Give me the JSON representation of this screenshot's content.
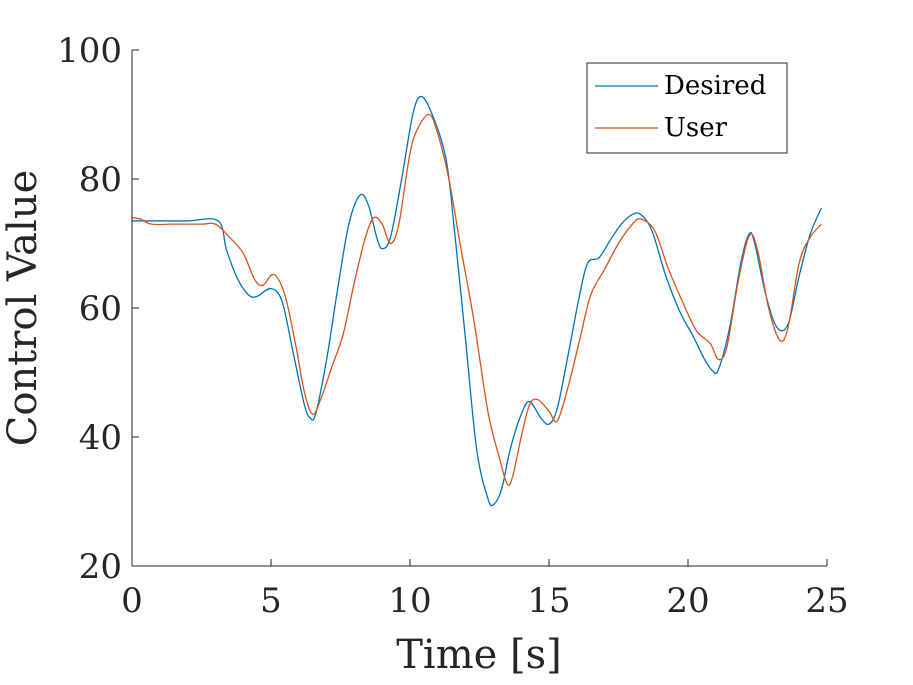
{
  "chart_data": {
    "type": "line",
    "xlabel": "Time [s]",
    "ylabel": "Control Value",
    "xlim": [
      0,
      25
    ],
    "ylim": [
      20,
      100
    ],
    "xticks": [
      0,
      5,
      10,
      15,
      20,
      25
    ],
    "yticks": [
      20,
      40,
      60,
      80,
      100
    ],
    "grid": false,
    "legend_position": "top-right",
    "series": [
      {
        "name": "Desired",
        "color": "#0072BD",
        "points": [
          [
            0,
            73.5
          ],
          [
            1,
            73.5
          ],
          [
            2,
            73.5
          ],
          [
            3.1,
            73.5
          ],
          [
            3.4,
            69
          ],
          [
            3.8,
            64.5
          ],
          [
            4.2,
            62
          ],
          [
            4.5,
            61.8
          ],
          [
            5.0,
            63
          ],
          [
            5.4,
            61
          ],
          [
            5.8,
            53
          ],
          [
            6.2,
            45
          ],
          [
            6.4,
            43
          ],
          [
            6.6,
            43.5
          ],
          [
            7.0,
            52
          ],
          [
            7.4,
            63
          ],
          [
            7.8,
            73
          ],
          [
            8.2,
            77.5
          ],
          [
            8.5,
            76
          ],
          [
            8.8,
            71
          ],
          [
            9.0,
            69.2
          ],
          [
            9.3,
            71
          ],
          [
            9.7,
            80
          ],
          [
            10.1,
            90
          ],
          [
            10.4,
            92.8
          ],
          [
            10.8,
            90
          ],
          [
            11.3,
            83
          ],
          [
            11.6,
            72
          ],
          [
            12.0,
            55
          ],
          [
            12.4,
            38
          ],
          [
            12.8,
            30.5
          ],
          [
            13.0,
            29.5
          ],
          [
            13.3,
            32
          ],
          [
            13.6,
            38
          ],
          [
            14.0,
            43.5
          ],
          [
            14.3,
            45.5
          ],
          [
            14.7,
            43
          ],
          [
            15.0,
            42
          ],
          [
            15.3,
            44.5
          ],
          [
            15.7,
            53
          ],
          [
            16.1,
            62
          ],
          [
            16.4,
            67
          ],
          [
            16.8,
            67.8
          ],
          [
            17.2,
            70.5
          ],
          [
            17.6,
            73
          ],
          [
            18.0,
            74.5
          ],
          [
            18.3,
            74.5
          ],
          [
            18.7,
            72
          ],
          [
            19.2,
            65
          ],
          [
            19.7,
            59.5
          ],
          [
            20.2,
            55.5
          ],
          [
            20.6,
            52
          ],
          [
            20.9,
            50.2
          ],
          [
            21.1,
            50.5
          ],
          [
            21.5,
            57
          ],
          [
            21.9,
            67
          ],
          [
            22.2,
            71.5
          ],
          [
            22.4,
            70
          ],
          [
            22.8,
            62
          ],
          [
            23.2,
            57
          ],
          [
            23.6,
            57.5
          ],
          [
            24.0,
            65
          ],
          [
            24.4,
            71.5
          ],
          [
            24.8,
            75.5
          ]
        ]
      },
      {
        "name": "User",
        "color": "#D95319",
        "points": [
          [
            0,
            74
          ],
          [
            0.3,
            73.8
          ],
          [
            0.7,
            73
          ],
          [
            1.5,
            73
          ],
          [
            2.5,
            73
          ],
          [
            3.0,
            73
          ],
          [
            3.5,
            71
          ],
          [
            4.0,
            68.5
          ],
          [
            4.4,
            64.5
          ],
          [
            4.7,
            63.5
          ],
          [
            5.1,
            65.2
          ],
          [
            5.5,
            62
          ],
          [
            5.9,
            54
          ],
          [
            6.2,
            47
          ],
          [
            6.5,
            43.5
          ],
          [
            6.8,
            46
          ],
          [
            7.2,
            51
          ],
          [
            7.6,
            56
          ],
          [
            8.0,
            64
          ],
          [
            8.4,
            71
          ],
          [
            8.7,
            74
          ],
          [
            9.0,
            73
          ],
          [
            9.3,
            70
          ],
          [
            9.6,
            73
          ],
          [
            10.0,
            84
          ],
          [
            10.3,
            88
          ],
          [
            10.7,
            90
          ],
          [
            11.0,
            87
          ],
          [
            11.4,
            80
          ],
          [
            11.8,
            70
          ],
          [
            12.3,
            58
          ],
          [
            12.8,
            44
          ],
          [
            13.2,
            37
          ],
          [
            13.5,
            32.7
          ],
          [
            13.7,
            34
          ],
          [
            14.0,
            40
          ],
          [
            14.3,
            45
          ],
          [
            14.6,
            45.8
          ],
          [
            15.0,
            44
          ],
          [
            15.3,
            42.5
          ],
          [
            15.7,
            48
          ],
          [
            16.1,
            55
          ],
          [
            16.5,
            62
          ],
          [
            17.0,
            66
          ],
          [
            17.5,
            70
          ],
          [
            18.0,
            73
          ],
          [
            18.3,
            73.8
          ],
          [
            18.8,
            72
          ],
          [
            19.3,
            66
          ],
          [
            19.8,
            61
          ],
          [
            20.3,
            56.5
          ],
          [
            20.8,
            54.5
          ],
          [
            21.1,
            52
          ],
          [
            21.4,
            54
          ],
          [
            21.8,
            64
          ],
          [
            22.2,
            71.2
          ],
          [
            22.5,
            69
          ],
          [
            22.9,
            60
          ],
          [
            23.3,
            55
          ],
          [
            23.6,
            57
          ],
          [
            24.0,
            67
          ],
          [
            24.4,
            71
          ],
          [
            24.8,
            73
          ]
        ]
      }
    ]
  }
}
